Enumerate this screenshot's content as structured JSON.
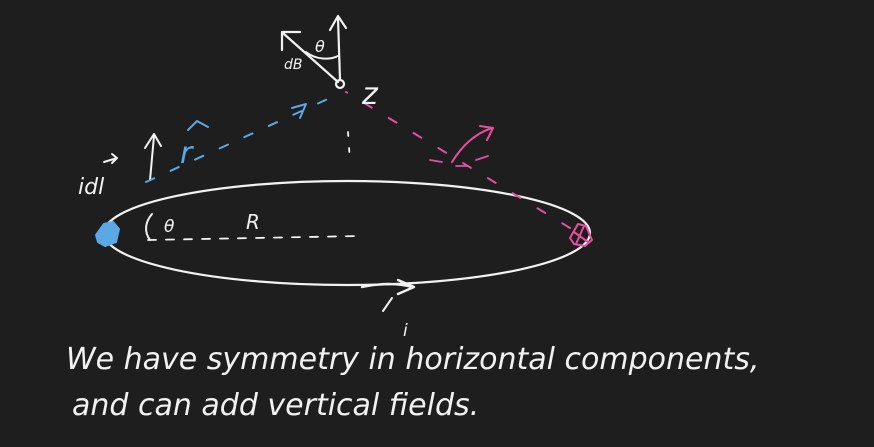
{
  "colors": {
    "background": "#1e1e1e",
    "ink": "#f2f2f2",
    "blue": "#5aa9e6",
    "pink": "#e64fa0"
  },
  "labels": {
    "dB": "dB",
    "theta_top": "θ",
    "z": "z",
    "r_vec": "r",
    "idl": "idl",
    "theta_left": "θ",
    "R": "R",
    "current": "i"
  },
  "notes": {
    "line1": "We have symmetry in horizontal components,",
    "line2": "and can add vertical fields."
  }
}
